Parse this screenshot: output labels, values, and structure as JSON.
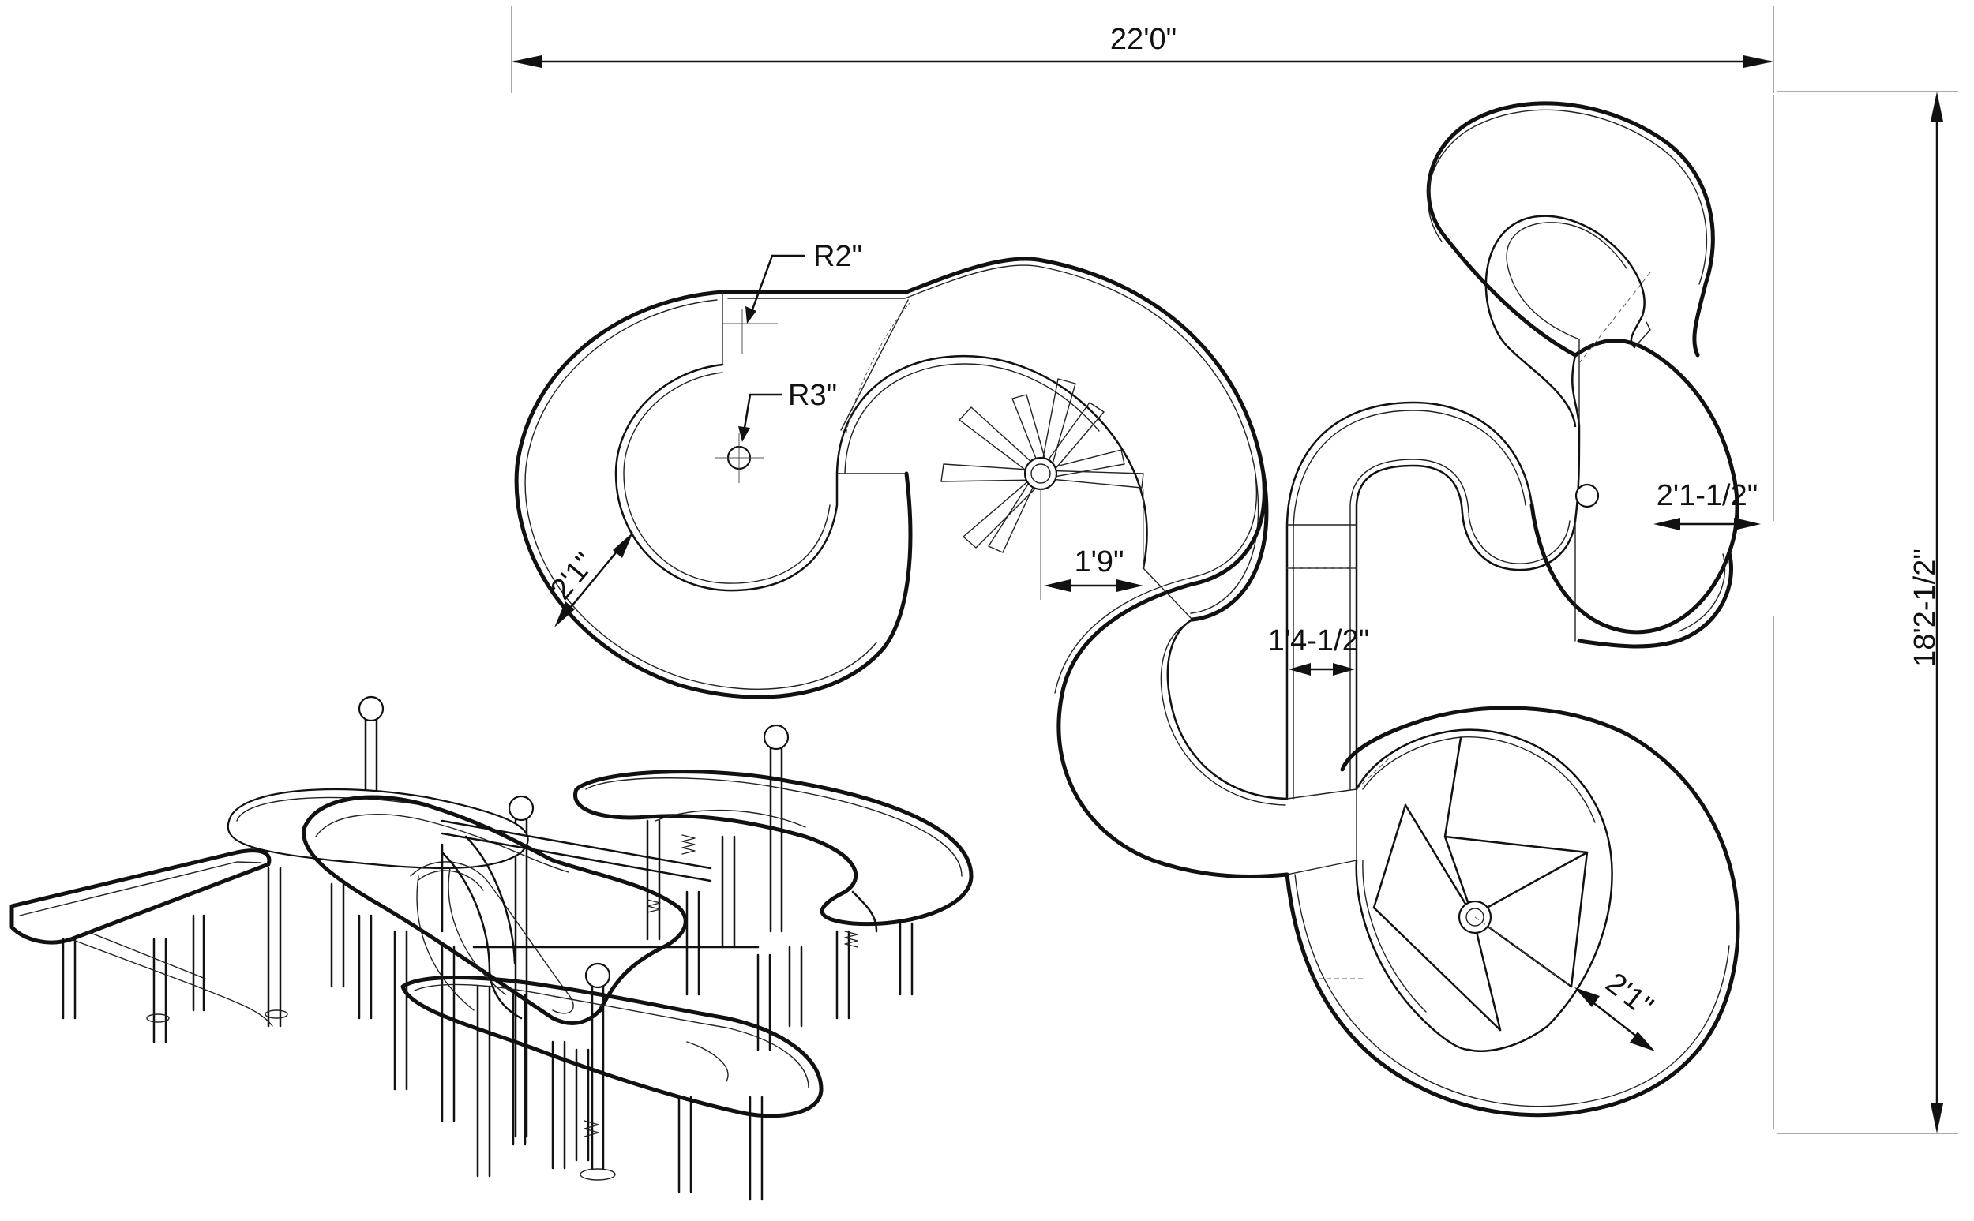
{
  "drawing": {
    "overall_width": "22'0\"",
    "overall_depth": "18'2-1/2\"",
    "radius_outer": "R2\"",
    "radius_inner": "R3\"",
    "slide_width_left": "2'1\"",
    "gap_center": "1'9\"",
    "chute_width": "1'4-1/2\"",
    "slide_width_right": "2'1-1/2\"",
    "slide_width_bottom": "2'1\""
  }
}
